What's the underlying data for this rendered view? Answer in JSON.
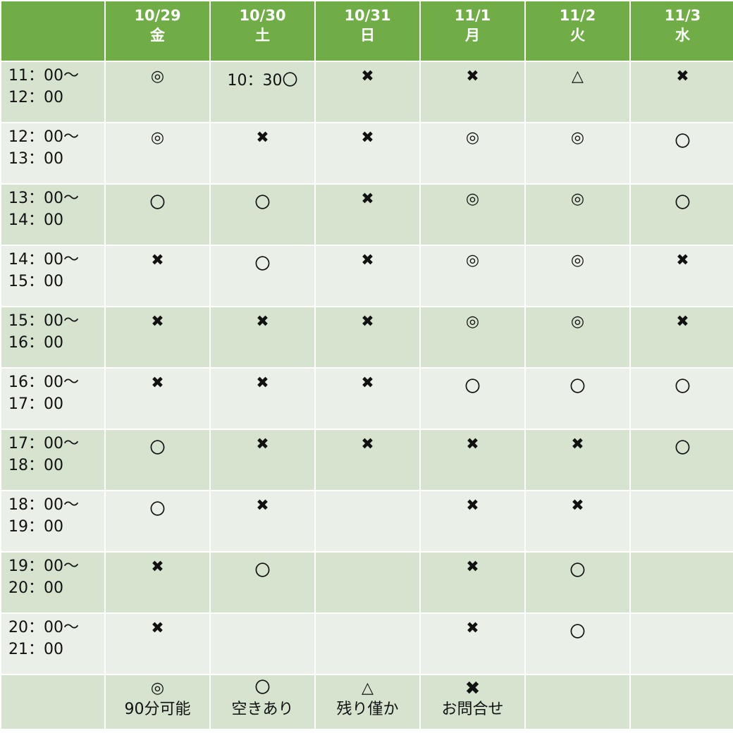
{
  "colors": {
    "header": "#70AD47",
    "row_odd": "#D5E3CF",
    "row_even": "#EAEFE8"
  },
  "header": {
    "corner": "",
    "days": [
      {
        "date": "10/29",
        "weekday": "金"
      },
      {
        "date": "10/30",
        "weekday": "土"
      },
      {
        "date": "10/31",
        "weekday": "日"
      },
      {
        "date": "11/1",
        "weekday": "月"
      },
      {
        "date": "11/2",
        "weekday": "火"
      },
      {
        "date": "11/3",
        "weekday": "水"
      }
    ]
  },
  "rows": [
    {
      "start": "11：00〜",
      "end": "12：00",
      "cells": [
        "◎",
        "10：30〇",
        "✖",
        "✖",
        "△",
        "✖"
      ]
    },
    {
      "start": "12：00〜",
      "end": "13：00",
      "cells": [
        "◎",
        "✖",
        "✖",
        "◎",
        "◎",
        "〇"
      ]
    },
    {
      "start": "13：00〜",
      "end": "14：00",
      "cells": [
        "〇",
        "〇",
        "✖",
        "◎",
        "◎",
        "〇"
      ]
    },
    {
      "start": "14：00〜",
      "end": "15：00",
      "cells": [
        "✖",
        "〇",
        "✖",
        "◎",
        "◎",
        "✖"
      ]
    },
    {
      "start": "15：00〜",
      "end": "16：00",
      "cells": [
        "✖",
        "✖",
        "✖",
        "◎",
        "◎",
        "✖"
      ]
    },
    {
      "start": "16：00〜",
      "end": "17：00",
      "cells": [
        "✖",
        "✖",
        "✖",
        "〇",
        "〇",
        "〇"
      ]
    },
    {
      "start": "17：00〜",
      "end": "18：00",
      "cells": [
        "〇",
        "✖",
        "✖",
        "✖",
        "✖",
        "〇"
      ]
    },
    {
      "start": "18：00〜",
      "end": "19：00",
      "cells": [
        "〇",
        "✖",
        "",
        "✖",
        "✖",
        ""
      ]
    },
    {
      "start": "19：00〜",
      "end": "20：00",
      "cells": [
        "✖",
        "〇",
        "",
        "✖",
        "〇",
        ""
      ]
    },
    {
      "start": "20：00〜",
      "end": "21：00",
      "cells": [
        "✖",
        "",
        "",
        "✖",
        "〇",
        ""
      ]
    }
  ],
  "legend": [
    {
      "symbol": "◎",
      "meaning": "90分可能"
    },
    {
      "symbol": "〇",
      "meaning": "空きあり"
    },
    {
      "symbol": "△",
      "meaning": "残り僅か"
    },
    {
      "symbol": "✖",
      "meaning": "お問合せ"
    },
    {
      "symbol": "",
      "meaning": ""
    },
    {
      "symbol": "",
      "meaning": ""
    }
  ]
}
